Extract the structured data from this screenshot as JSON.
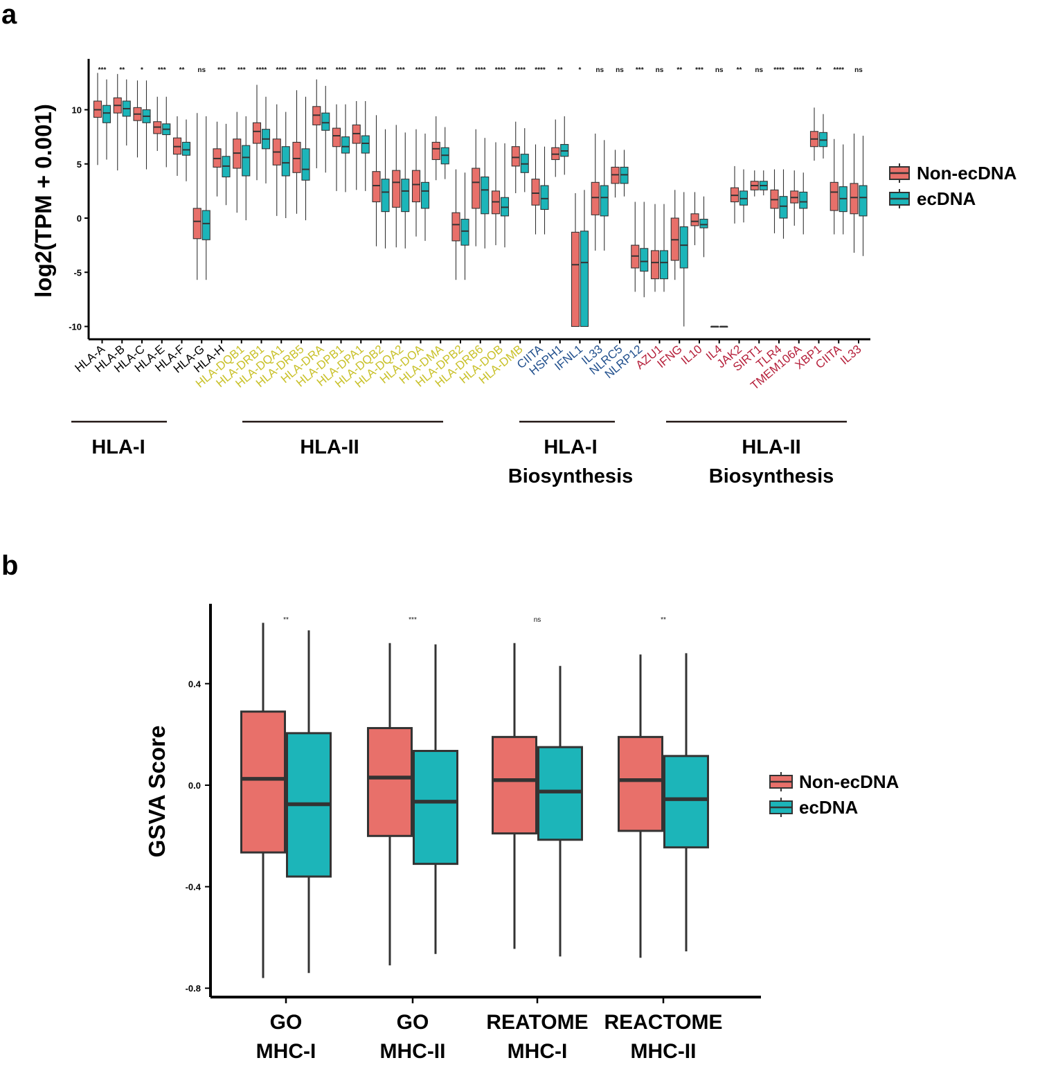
{
  "colors": {
    "non_ecdna": "#E8706A",
    "ecdna": "#1CB5B9",
    "hla1": "#000000",
    "hla2": "#C9C12A",
    "hla1_bio": "#1F4E8C",
    "hla2_bio": "#B51F3A"
  },
  "panel_a": {
    "letter": "a",
    "ylabel": "log2(TPM + 0.001)",
    "legend": {
      "non_ecdna": "Non-ecDNA",
      "ecdna": "ecDNA"
    },
    "groups": [
      {
        "label": [
          "HLA-I"
        ]
      },
      {
        "label": [
          "HLA-II"
        ]
      },
      {
        "label": [
          "HLA-I",
          "Biosynthesis"
        ]
      },
      {
        "label": [
          "HLA-II",
          "Biosynthesis"
        ]
      }
    ],
    "chart_data": {
      "type": "box",
      "title": "",
      "xlabel": "",
      "ylabel": "log2(TPM + 0.001)",
      "ylim": [
        -10.8,
        14.5
      ],
      "yticks": [
        -10,
        -5,
        0,
        5,
        10
      ],
      "series": [
        "Non-ecDNA",
        "ecDNA"
      ],
      "genes": [
        {
          "name": "HLA-A",
          "cat": "hla1",
          "sig": "***",
          "non": [
            4.9,
            9.3,
            10,
            10.8,
            13.4
          ],
          "ec": [
            5.4,
            8.8,
            9.7,
            10.4,
            12.8
          ]
        },
        {
          "name": "HLA-B",
          "cat": "hla1",
          "sig": "**",
          "non": [
            4.4,
            9.7,
            10.4,
            11.1,
            13.3
          ],
          "ec": [
            6.7,
            9.4,
            10.1,
            10.8,
            12.8
          ]
        },
        {
          "name": "HLA-C",
          "cat": "hla1",
          "sig": "*",
          "non": [
            5.6,
            9.0,
            9.6,
            10.2,
            12.7
          ],
          "ec": [
            4.5,
            8.8,
            9.4,
            10.0,
            12.7
          ]
        },
        {
          "name": "HLA-E",
          "cat": "hla1",
          "sig": "***",
          "non": [
            6.2,
            7.8,
            8.4,
            8.9,
            11.2
          ],
          "ec": [
            4.7,
            7.7,
            8.2,
            8.7,
            11.2
          ]
        },
        {
          "name": "HLA-F",
          "cat": "hla1",
          "sig": "**",
          "non": [
            3.9,
            5.9,
            6.6,
            7.4,
            9.4
          ],
          "ec": [
            3.4,
            5.8,
            6.3,
            7.0,
            9.1
          ]
        },
        {
          "name": "HLA-G",
          "cat": "hla1",
          "sig": "ns",
          "non": [
            -5.7,
            -1.9,
            -0.3,
            0.9,
            9.7
          ],
          "ec": [
            -5.7,
            -2.0,
            -0.5,
            0.7,
            9.4
          ]
        },
        {
          "name": "HLA-H",
          "cat": "hla1",
          "sig": "***",
          "non": [
            2.0,
            4.7,
            5.5,
            6.4,
            8.9
          ],
          "ec": [
            1.2,
            3.8,
            4.8,
            5.7,
            8.7
          ]
        },
        {
          "name": "HLA-DQB1",
          "cat": "hla2",
          "sig": "***",
          "non": [
            0.5,
            4.6,
            6.0,
            7.3,
            9.8
          ],
          "ec": [
            -0.2,
            3.9,
            5.6,
            6.7,
            9.4
          ]
        },
        {
          "name": "HLA-DRB1",
          "cat": "hla2",
          "sig": "****",
          "non": [
            3.5,
            6.9,
            8.0,
            8.8,
            12.3
          ],
          "ec": [
            3.2,
            6.4,
            7.3,
            8.2,
            11.2
          ]
        },
        {
          "name": "HLA-DQA1",
          "cat": "hla2",
          "sig": "****",
          "non": [
            0.2,
            4.9,
            6.1,
            7.3,
            10.5
          ],
          "ec": [
            0.0,
            3.9,
            5.1,
            6.6,
            9.8
          ]
        },
        {
          "name": "HLA-DRB5",
          "cat": "hla2",
          "sig": "****",
          "non": [
            0.4,
            4.2,
            5.5,
            7.0,
            11.8
          ],
          "ec": [
            -0.2,
            3.5,
            4.5,
            6.4,
            11.2
          ]
        },
        {
          "name": "HLA-DRA",
          "cat": "hla2",
          "sig": "****",
          "non": [
            4.6,
            8.6,
            9.5,
            10.3,
            12.8
          ],
          "ec": [
            4.2,
            8.1,
            8.8,
            9.7,
            12.2
          ]
        },
        {
          "name": "HLA-DPB1",
          "cat": "hla2",
          "sig": "****",
          "non": [
            2.5,
            6.6,
            7.6,
            8.3,
            10.5
          ],
          "ec": [
            2.4,
            6.0,
            6.6,
            7.5,
            10.5
          ]
        },
        {
          "name": "HLA-DPA1",
          "cat": "hla2",
          "sig": "****",
          "non": [
            2.6,
            6.9,
            7.8,
            8.6,
            10.8
          ],
          "ec": [
            2.5,
            6.0,
            6.9,
            7.6,
            10.8
          ]
        },
        {
          "name": "HLA-DQB2",
          "cat": "hla2",
          "sig": "****",
          "non": [
            -2.6,
            1.5,
            3.0,
            4.3,
            9.5
          ],
          "ec": [
            -2.8,
            0.6,
            2.4,
            3.6,
            8.2
          ]
        },
        {
          "name": "HLA-DQA2",
          "cat": "hla2",
          "sig": "***",
          "non": [
            -2.7,
            1.0,
            3.3,
            4.4,
            8.6
          ],
          "ec": [
            -2.8,
            0.6,
            2.5,
            3.6,
            7.9
          ]
        },
        {
          "name": "HLA-DOA",
          "cat": "hla2",
          "sig": "****",
          "non": [
            -1.7,
            1.5,
            3.1,
            4.4,
            8.2
          ],
          "ec": [
            -2.1,
            0.9,
            2.5,
            3.3,
            7.8
          ]
        },
        {
          "name": "HLA-DMA",
          "cat": "hla2",
          "sig": "****",
          "non": [
            3.5,
            5.4,
            6.4,
            7.0,
            9.4
          ],
          "ec": [
            3.6,
            5.0,
            5.8,
            6.5,
            8.4
          ]
        },
        {
          "name": "HLA-DPB2",
          "cat": "hla2",
          "sig": "***",
          "non": [
            -5.7,
            -2.1,
            -0.6,
            0.5,
            4.5
          ],
          "ec": [
            -5.7,
            -2.5,
            -1.2,
            -0.1,
            4.2
          ]
        },
        {
          "name": "HLA-DRB6",
          "cat": "hla2",
          "sig": "****",
          "non": [
            -2.6,
            0.9,
            3.3,
            4.6,
            8.2
          ],
          "ec": [
            -2.8,
            0.4,
            2.6,
            3.8,
            7.4
          ]
        },
        {
          "name": "HLA-DOB",
          "cat": "hla2",
          "sig": "****",
          "non": [
            -2.5,
            0.4,
            1.5,
            2.5,
            7.0
          ],
          "ec": [
            -2.7,
            0.2,
            1.0,
            1.9,
            6.9
          ]
        },
        {
          "name": "HLA-DMB",
          "cat": "hla2",
          "sig": "****",
          "non": [
            2.3,
            4.8,
            5.6,
            6.6,
            8.9
          ],
          "ec": [
            2.4,
            4.2,
            5.0,
            5.9,
            8.3
          ]
        },
        {
          "name": "CIITA",
          "cat": "hla1_bio",
          "sig": "****",
          "non": [
            -1.5,
            1.2,
            2.3,
            3.6,
            6.8
          ],
          "ec": [
            -1.5,
            0.8,
            1.8,
            3.0,
            6.6
          ]
        },
        {
          "name": "HSPH1",
          "cat": "hla1_bio",
          "sig": "**",
          "non": [
            3.8,
            5.4,
            5.9,
            6.5,
            9.1
          ],
          "ec": [
            4.0,
            5.7,
            6.2,
            6.8,
            9.4
          ]
        },
        {
          "name": "IFNL1",
          "cat": "hla1_bio",
          "sig": "*",
          "non": [
            -10,
            -10,
            -4.3,
            -1.3,
            2.3
          ],
          "ec": [
            -10,
            -10,
            -4.1,
            -1.2,
            2.6
          ]
        },
        {
          "name": "IL33",
          "cat": "hla1_bio",
          "sig": "ns",
          "non": [
            -3.0,
            0.3,
            1.9,
            3.3,
            7.8
          ],
          "ec": [
            -3.0,
            0.2,
            1.9,
            3.0,
            7.2
          ]
        },
        {
          "name": "NLRC5",
          "cat": "hla1_bio",
          "sig": "ns",
          "non": [
            1.9,
            3.2,
            4.0,
            4.7,
            6.3
          ],
          "ec": [
            2.0,
            3.2,
            4.0,
            4.7,
            6.3
          ]
        },
        {
          "name": "NLRP12",
          "cat": "hla1_bio",
          "sig": "***",
          "non": [
            -6.8,
            -4.6,
            -3.5,
            -2.5,
            1.5
          ],
          "ec": [
            -7.3,
            -4.9,
            -4.0,
            -2.8,
            1.5
          ]
        },
        {
          "name": "AZU1",
          "cat": "hla2_bio",
          "sig": "ns",
          "non": [
            -6.8,
            -5.6,
            -4.1,
            -3.0,
            1.3
          ],
          "ec": [
            -6.8,
            -5.6,
            -4.1,
            -3.0,
            1.3
          ]
        },
        {
          "name": "IFNG",
          "cat": "hla2_bio",
          "sig": "**",
          "non": [
            -5.7,
            -3.9,
            -2.0,
            0.0,
            2.6
          ],
          "ec": [
            -10,
            -4.6,
            -2.5,
            -0.8,
            2.4
          ]
        },
        {
          "name": "IL10",
          "cat": "hla2_bio",
          "sig": "***",
          "non": [
            -2.5,
            -0.7,
            -0.3,
            0.4,
            2.4
          ],
          "ec": [
            -3.6,
            -0.9,
            -0.6,
            -0.1,
            2.0
          ]
        },
        {
          "name": "IL4",
          "cat": "hla2_bio",
          "sig": "ns",
          "non": [
            -10,
            -10,
            -10,
            -10,
            -10
          ],
          "ec": [
            -10,
            -10,
            -10,
            -10,
            -10
          ]
        },
        {
          "name": "JAK2",
          "cat": "hla2_bio",
          "sig": "**",
          "non": [
            -0.5,
            1.5,
            2.1,
            2.8,
            4.8
          ],
          "ec": [
            -0.4,
            1.2,
            1.8,
            2.5,
            4.5
          ]
        },
        {
          "name": "SIRT1",
          "cat": "hla2_bio",
          "sig": "ns",
          "non": [
            2.0,
            2.6,
            3.0,
            3.4,
            4.4
          ],
          "ec": [
            2.1,
            2.6,
            3.0,
            3.4,
            4.4
          ]
        },
        {
          "name": "TLR4",
          "cat": "hla2_bio",
          "sig": "****",
          "non": [
            -1.4,
            0.9,
            1.7,
            2.6,
            4.5
          ],
          "ec": [
            -1.9,
            0.0,
            1.1,
            2.0,
            4.5
          ]
        },
        {
          "name": "TMEM106A",
          "cat": "hla2_bio",
          "sig": "****",
          "non": [
            -0.7,
            1.4,
            1.9,
            2.5,
            4.4
          ],
          "ec": [
            -1.5,
            0.9,
            1.5,
            2.4,
            4.2
          ]
        },
        {
          "name": "XBP1",
          "cat": "hla2_bio",
          "sig": "**",
          "non": [
            5.3,
            6.6,
            7.3,
            8.0,
            10.2
          ],
          "ec": [
            5.5,
            6.6,
            7.2,
            7.9,
            9.6
          ]
        },
        {
          "name": "CIITA",
          "cat": "hla2_bio",
          "sig": "****",
          "non": [
            -1.5,
            0.7,
            2.4,
            3.3,
            7.3
          ],
          "ec": [
            -1.5,
            0.6,
            1.8,
            2.9,
            6.8
          ]
        },
        {
          "name": "IL33",
          "cat": "hla2_bio",
          "sig": "ns",
          "non": [
            -3.2,
            0.4,
            1.9,
            3.2,
            7.8
          ],
          "ec": [
            -3.5,
            0.2,
            1.9,
            3.0,
            7.6
          ]
        }
      ]
    }
  },
  "panel_b": {
    "letter": "b",
    "ylabel": "GSVA Score",
    "legend": {
      "non_ecdna": "Non-ecDNA",
      "ecdna": "ecDNA"
    },
    "chart_data": {
      "type": "box",
      "title": "",
      "xlabel": "",
      "ylabel": "GSVA Score",
      "ylim": [
        -0.82,
        0.72
      ],
      "yticks": [
        -0.8,
        -0.4,
        0.0,
        0.4
      ],
      "ytick_labels": [
        "-0.8",
        "-0.4",
        "0.0",
        "0.4"
      ],
      "series": [
        "Non-ecDNA",
        "ecDNA"
      ],
      "categories": [
        {
          "label": [
            "GO",
            "MHC-I"
          ],
          "sig": "**",
          "non": [
            -0.76,
            -0.265,
            0.025,
            0.29,
            0.64
          ],
          "ec": [
            -0.74,
            -0.36,
            -0.075,
            0.205,
            0.61
          ]
        },
        {
          "label": [
            "GO",
            "MHC-II"
          ],
          "sig": "***",
          "non": [
            -0.71,
            -0.2,
            0.03,
            0.225,
            0.56
          ],
          "ec": [
            -0.665,
            -0.31,
            -0.065,
            0.135,
            0.555
          ]
        },
        {
          "label": [
            "REATOME",
            "MHC-I"
          ],
          "sig": "ns",
          "non": [
            -0.645,
            -0.19,
            0.02,
            0.19,
            0.56
          ],
          "ec": [
            -0.675,
            -0.215,
            -0.025,
            0.15,
            0.47
          ]
        },
        {
          "label": [
            "REACTOME",
            "MHC-II"
          ],
          "sig": "**",
          "non": [
            -0.68,
            -0.18,
            0.02,
            0.19,
            0.515
          ],
          "ec": [
            -0.655,
            -0.245,
            -0.055,
            0.115,
            0.52
          ]
        }
      ]
    }
  }
}
